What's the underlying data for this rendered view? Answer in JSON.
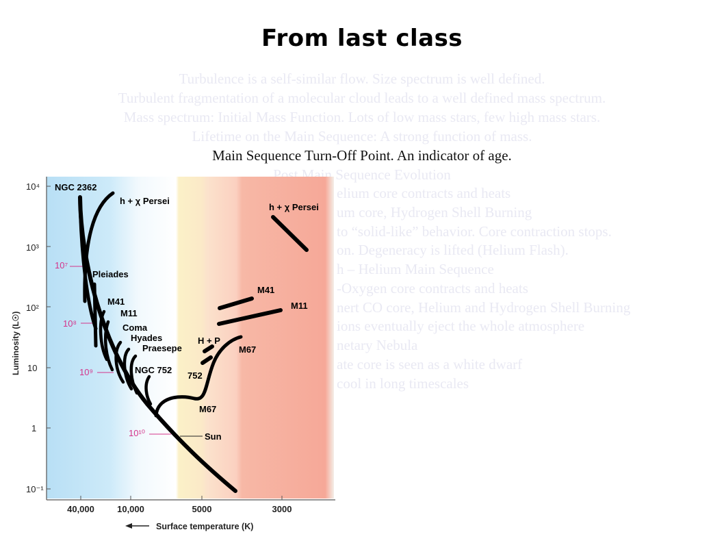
{
  "slide": {
    "title": "From last class",
    "lines": [
      {
        "text": "Turbulence is a  self-similar flow. Size spectrum is well defined.",
        "emphasis": false
      },
      {
        "text": "Turbulent fragmentation of a molecular cloud leads to a well defined mass spectrum.",
        "emphasis": false
      },
      {
        "text": "Mass spectrum: Initial Mass Function. Lots of low mass stars, few high mass stars.",
        "emphasis": false
      },
      {
        "text": "Lifetime on the Main Sequence: A strong function of mass.",
        "emphasis": false
      },
      {
        "text": "Main Sequence Turn-Off Point. An indicator of age.",
        "emphasis": true
      },
      {
        "text": "Post Main Sequence Evolution",
        "emphasis": false
      }
    ],
    "partial_lines": [
      "elium core contracts and heats",
      "um core, Hydrogen Shell Burning",
      "to “solid-like” behavior. Core contraction stops.",
      "on. Degeneracy is lifted (Helium Flash).",
      "h – Helium Main Sequence",
      "-Oxygen core contracts and heats",
      "nert CO core, Helium and Hydrogen Shell Burning",
      "ions eventually eject the whole atmosphere",
      "netary Nebula",
      "ate core is seen as a white dwarf",
      "cool in long timescales"
    ]
  },
  "figure": {
    "y_axis_label": "Luminosity (L☉)",
    "y_ticks": [
      "10⁴",
      "10³",
      "10²",
      "10",
      "1",
      "10⁻¹"
    ],
    "x_axis_label": "Surface temperature (K)",
    "x_ticks": [
      "40,000",
      "10,000",
      "5000",
      "3000"
    ],
    "age_labels": [
      "10⁷",
      "10⁸",
      "10⁹",
      "10¹⁰"
    ],
    "cluster_labels": {
      "ngc2362": "NGC 2362",
      "hx_persei_left": "h + χ Persei",
      "hx_persei_right": "h + χ Persei",
      "pleiades": "Pleiades",
      "m41_left": "M41",
      "m11_left": "M11",
      "coma": "Coma",
      "hyades": "Hyades",
      "praesepe": "Praesepe",
      "ngc752": "NGC 752",
      "ngc752_short": "752",
      "hp": "H + P",
      "m41_right": "M41",
      "m11_right": "M11",
      "m67_upper": "M67",
      "m67_lower": "M67",
      "sun": "Sun"
    },
    "colors": {
      "blue_band": "#bfe3f7",
      "yellow_band": "#fbf0c0",
      "orange_band": "#fbd8c0",
      "red_band": "#f7b3a0",
      "age_label": "#d4348a",
      "track": "#000000"
    }
  }
}
